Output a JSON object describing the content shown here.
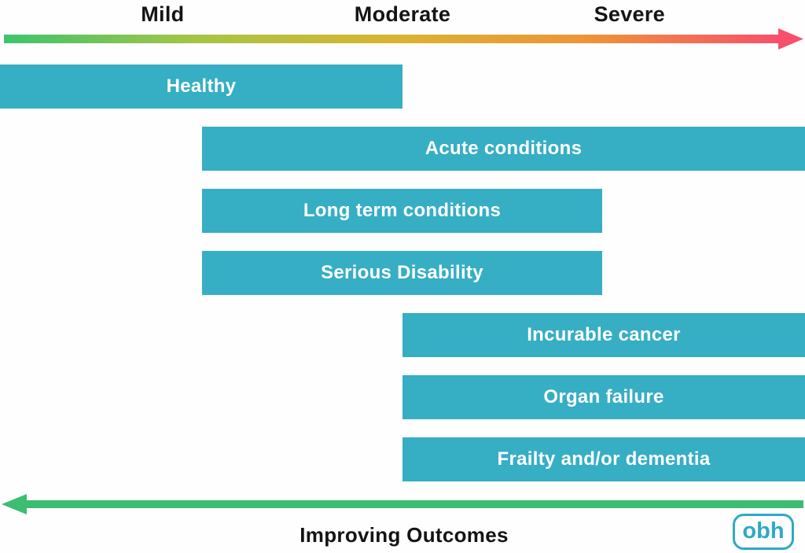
{
  "severity_axis": {
    "labels": [
      {
        "text": "Mild",
        "position_pct": 20.2
      },
      {
        "text": "Moderate",
        "position_pct": 50.0
      },
      {
        "text": "Severe",
        "position_pct": 78.2
      }
    ]
  },
  "chart_data": {
    "type": "bar",
    "orientation": "horizontal-span",
    "axis": "severity (Mild → Moderate → Severe), 0–100%",
    "bars": [
      {
        "label": "Healthy",
        "start_pct": 0.0,
        "end_pct": 50.0
      },
      {
        "label": "Acute conditions",
        "start_pct": 25.1,
        "end_pct": 100.0
      },
      {
        "label": "Long term conditions",
        "start_pct": 25.1,
        "end_pct": 74.8
      },
      {
        "label": "Serious Disability",
        "start_pct": 25.1,
        "end_pct": 74.8
      },
      {
        "label": "Incurable cancer",
        "start_pct": 50.0,
        "end_pct": 100.0
      },
      {
        "label": "Organ failure",
        "start_pct": 50.0,
        "end_pct": 100.0
      },
      {
        "label": "Frailty and/or dementia",
        "start_pct": 50.0,
        "end_pct": 100.0
      }
    ]
  },
  "footer": {
    "improving_label": "Improving Outcomes",
    "logo_text": "obh"
  },
  "colors": {
    "bar_teal": "#36aec4",
    "bar_text": "#ffffff",
    "ink": "#141414",
    "outcomes_green": "#3cbd72",
    "logo_teal": "#2fa9c7",
    "severity_gradient": [
      "#3ec46d",
      "#a6c544",
      "#d9b430",
      "#ee9437",
      "#f8506b"
    ]
  }
}
